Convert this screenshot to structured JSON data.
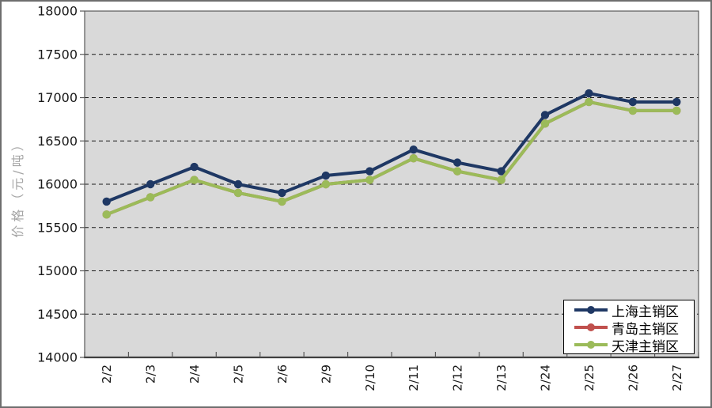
{
  "chart_data": {
    "type": "line",
    "title": "",
    "xlabel": "",
    "ylabel": "价格（元/吨）",
    "ylim": [
      14000,
      18000
    ],
    "ytick_step": 500,
    "grid": "horizontal-dashed",
    "plot_bg_color": "#d9d9d9",
    "axis_color": "#595959",
    "legend_position": "bottom-right-inside",
    "categories": [
      "2/2",
      "2/3",
      "2/4",
      "2/5",
      "2/6",
      "2/9",
      "2/10",
      "2/11",
      "2/12",
      "2/13",
      "2/24",
      "2/25",
      "2/26",
      "2/27"
    ],
    "series": [
      {
        "name": "上海主销区",
        "color": "#1f3864",
        "values": [
          15800,
          16000,
          16200,
          16000,
          15900,
          16100,
          16150,
          16400,
          16250,
          16150,
          16800,
          17050,
          16950,
          16950
        ]
      },
      {
        "name": "青岛主销区",
        "color": "#c0504d",
        "values": [
          15650,
          15850,
          16050,
          15900,
          15800,
          16000,
          16050,
          16300,
          16150,
          16050,
          16700,
          16950,
          16850,
          16850
        ]
      },
      {
        "name": "天津主销区",
        "color": "#9bbb59",
        "values": [
          15650,
          15850,
          16050,
          15900,
          15800,
          16000,
          16050,
          16300,
          16150,
          16050,
          16700,
          16950,
          16850,
          16850
        ]
      }
    ]
  }
}
